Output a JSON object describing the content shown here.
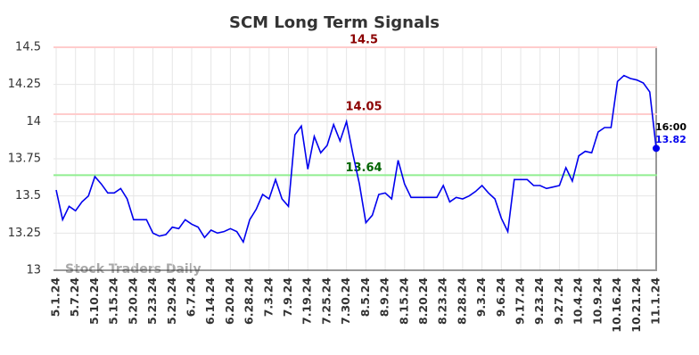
{
  "chart_data": {
    "type": "line",
    "title": "SCM Long Term Signals",
    "categories": [
      "5.1.24",
      null,
      null,
      "5.7.24",
      null,
      null,
      "5.10.24",
      null,
      null,
      "5.15.24",
      null,
      null,
      "5.20.24",
      null,
      null,
      "5.23.24",
      null,
      null,
      "5.29.24",
      null,
      null,
      "6.7.24",
      null,
      null,
      "6.14.24",
      null,
      null,
      "6.20.24",
      null,
      null,
      "6.28.24",
      null,
      null,
      "7.3.24",
      null,
      null,
      "7.9.24",
      null,
      null,
      "7.19.24",
      null,
      null,
      "7.25.24",
      null,
      null,
      "7.30.24",
      null,
      null,
      "8.5.24",
      null,
      null,
      "8.9.24",
      null,
      null,
      "8.15.24",
      null,
      null,
      "8.20.24",
      null,
      null,
      "8.23.24",
      null,
      null,
      "8.28.24",
      null,
      null,
      "9.3.24",
      null,
      null,
      "9.6.24",
      null,
      null,
      "9.17.24",
      null,
      null,
      "9.23.24",
      null,
      null,
      "9.27.24",
      null,
      null,
      "10.4.24",
      null,
      null,
      "10.9.24",
      null,
      null,
      "10.16.24",
      null,
      null,
      "10.21.24",
      null,
      null,
      "11.1.24"
    ],
    "values": [
      13.54,
      13.34,
      13.43,
      13.4,
      13.46,
      13.5,
      13.63,
      13.58,
      13.52,
      13.52,
      13.55,
      13.48,
      13.34,
      13.34,
      13.34,
      13.25,
      13.23,
      13.24,
      13.29,
      13.28,
      13.34,
      13.31,
      13.29,
      13.22,
      13.27,
      13.25,
      13.26,
      13.28,
      13.26,
      13.19,
      13.34,
      13.41,
      13.51,
      13.48,
      13.61,
      13.48,
      13.43,
      13.91,
      13.97,
      13.68,
      13.9,
      13.79,
      13.84,
      13.98,
      13.87,
      14.0,
      13.78,
      13.58,
      13.32,
      13.37,
      13.51,
      13.52,
      13.48,
      13.74,
      13.58,
      13.49,
      13.49,
      13.49,
      13.49,
      13.49,
      13.57,
      13.46,
      13.49,
      13.48,
      13.5,
      13.53,
      13.57,
      13.52,
      13.48,
      13.35,
      13.26,
      13.61,
      13.61,
      13.61,
      13.57,
      13.57,
      13.55,
      13.56,
      13.57,
      13.69,
      13.6,
      13.77,
      13.8,
      13.79,
      13.93,
      13.96,
      13.96,
      14.27,
      14.31,
      14.29,
      14.28,
      14.26,
      14.2,
      13.82
    ],
    "color": "#0000ee",
    "ylim": [
      13,
      14.5
    ],
    "yticks": [
      13,
      13.25,
      13.5,
      13.75,
      14,
      14.25,
      14.5
    ],
    "grid": true,
    "hlines": [
      {
        "value": 14.5,
        "color": "#ffcccc",
        "label_color": "#8b0000"
      },
      {
        "value": 14.05,
        "color": "#ffcccc",
        "label_color": "#8b0000"
      },
      {
        "value": 13.64,
        "color": "#90ee90",
        "label_color": "#006400"
      }
    ],
    "last_point": {
      "time": "16:00",
      "value": 13.82
    },
    "watermark": "Stock Traders Daily"
  }
}
